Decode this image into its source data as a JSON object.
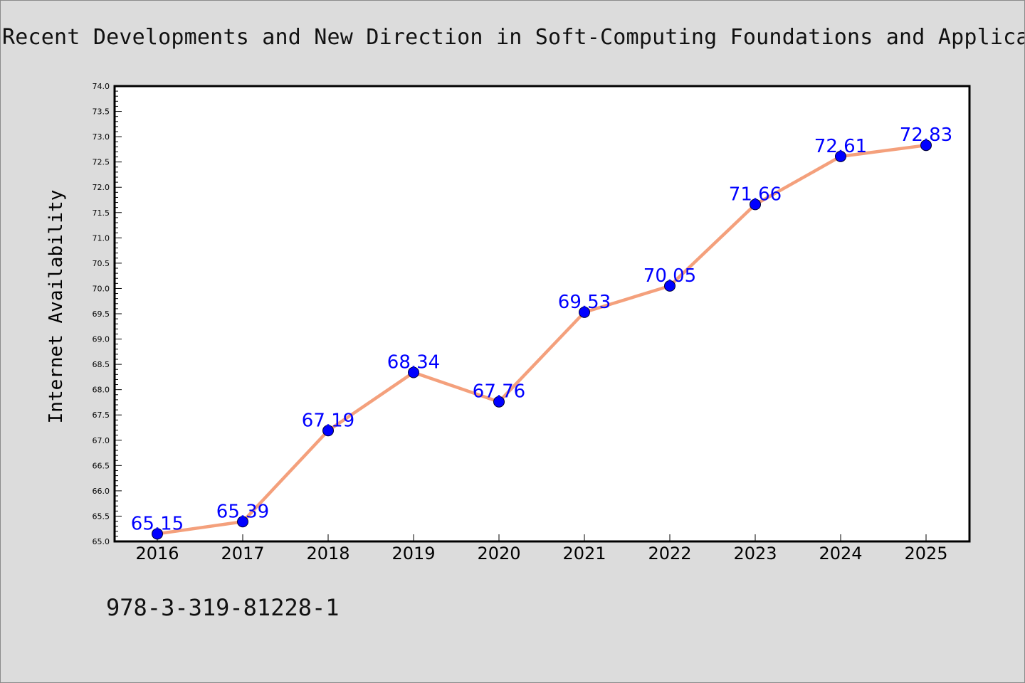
{
  "page": {
    "title": "Recent Developments and New Direction in Soft-Computing Foundations and Applications",
    "isbn": "978-3-319-81228-1"
  },
  "chart_data": {
    "type": "line",
    "title": "Recent Developments and New Direction in Soft-Computing Foundations and Applications",
    "xlabel": "",
    "ylabel": "Internet Availability",
    "categories": [
      "2016",
      "2017",
      "2018",
      "2019",
      "2020",
      "2021",
      "2022",
      "2023",
      "2024",
      "2025"
    ],
    "series": [
      {
        "values": [
          65.15,
          65.39,
          67.19,
          68.34,
          67.76,
          69.53,
          70.05,
          71.66,
          72.61,
          72.83
        ],
        "labels": [
          "65.15",
          "65.39",
          "67.19",
          "68.34",
          "67.76",
          "69.53",
          "70.05",
          "71.66",
          "72.61",
          "72.83"
        ]
      }
    ],
    "ylim": [
      65.0,
      74.0
    ],
    "yticks": [
      "65.0",
      "65.5",
      "66.0",
      "66.5",
      "67.0",
      "67.5",
      "68.0",
      "68.5",
      "69.0",
      "69.5",
      "70.0",
      "70.5",
      "71.0",
      "71.5",
      "72.0",
      "72.5",
      "73.0",
      "73.5",
      "74.0"
    ],
    "grid": false,
    "legend": "none",
    "colors": {
      "line": "#f4a07c",
      "marker": "#0000ff",
      "label": "#0000ff",
      "background": "#dcdcdc",
      "plot_background": "#ffffff"
    }
  }
}
